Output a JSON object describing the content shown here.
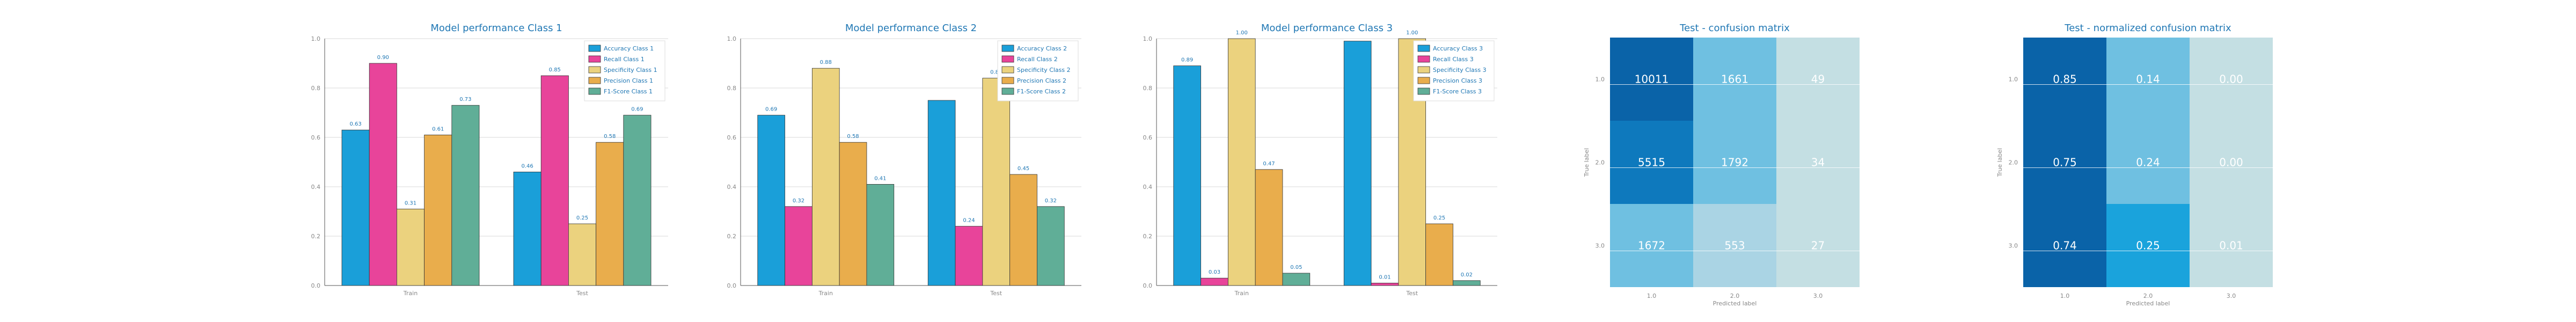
{
  "chart_data": [
    {
      "type": "bar",
      "title": "Model performance Class 1",
      "categories": [
        "Train",
        "Test"
      ],
      "ylim": [
        0,
        1.0
      ],
      "yticks": [
        "0.0",
        "0.2",
        "0.4",
        "0.6",
        "0.8",
        "1.0"
      ],
      "grid": true,
      "legend_position": "top-right",
      "series": [
        {
          "name": "Accuracy Class 1",
          "values": [
            0.63,
            0.46
          ],
          "labels": [
            "0.63",
            "0.46"
          ],
          "color": "#1a9fd9"
        },
        {
          "name": "Recall Class 1",
          "values": [
            0.9,
            0.85
          ],
          "labels": [
            "0.90",
            "0.85"
          ],
          "color": "#e8449a"
        },
        {
          "name": "Specificity Class 1",
          "values": [
            0.31,
            0.25
          ],
          "labels": [
            "0.31",
            "0.25"
          ],
          "color": "#ebd27e"
        },
        {
          "name": "Precision Class 1",
          "values": [
            0.61,
            0.58
          ],
          "labels": [
            "0.61",
            "0.58"
          ],
          "color": "#e9ad4c"
        },
        {
          "name": "F1-Score Class 1",
          "values": [
            0.73,
            0.69
          ],
          "labels": [
            "0.73",
            "0.69"
          ],
          "color": "#60ae97"
        }
      ]
    },
    {
      "type": "bar",
      "title": "Model performance Class 2",
      "categories": [
        "Train",
        "Test"
      ],
      "ylim": [
        0,
        1.0
      ],
      "yticks": [
        "0.0",
        "0.2",
        "0.4",
        "0.6",
        "0.8",
        "1.0"
      ],
      "grid": true,
      "legend_position": "top-right",
      "series": [
        {
          "name": "Accuracy Class 2",
          "values": [
            0.69,
            0.75
          ],
          "labels": [
            "0.69",
            ""
          ],
          "color": "#1a9fd9"
        },
        {
          "name": "Recall Class 2",
          "values": [
            0.32,
            0.24
          ],
          "labels": [
            "0.32",
            "0.24"
          ],
          "color": "#e8449a"
        },
        {
          "name": "Specificity Class 2",
          "values": [
            0.88,
            0.84
          ],
          "labels": [
            "0.88",
            "0.84"
          ],
          "color": "#ebd27e"
        },
        {
          "name": "Precision Class 2",
          "values": [
            0.58,
            0.45
          ],
          "labels": [
            "0.58",
            "0.45"
          ],
          "color": "#e9ad4c"
        },
        {
          "name": "F1-Score Class 2",
          "values": [
            0.41,
            0.32
          ],
          "labels": [
            "0.41",
            "0.32"
          ],
          "color": "#60ae97"
        }
      ]
    },
    {
      "type": "bar",
      "title": "Model performance Class 3",
      "categories": [
        "Train",
        "Test"
      ],
      "ylim": [
        0,
        1.0
      ],
      "yticks": [
        "0.0",
        "0.2",
        "0.4",
        "0.6",
        "0.8",
        "1.0"
      ],
      "grid": true,
      "legend_position": "top-right",
      "series": [
        {
          "name": "Accuracy Class 3",
          "values": [
            0.89,
            0.99
          ],
          "labels": [
            "0.89",
            ""
          ],
          "color": "#1a9fd9"
        },
        {
          "name": "Recall Class 3",
          "values": [
            0.03,
            0.01
          ],
          "labels": [
            "0.03",
            "0.01"
          ],
          "color": "#e8449a"
        },
        {
          "name": "Specificity Class 3",
          "values": [
            1.0,
            1.0
          ],
          "labels": [
            "1.00",
            "1.00"
          ],
          "color": "#ebd27e"
        },
        {
          "name": "Precision Class 3",
          "values": [
            0.47,
            0.25
          ],
          "labels": [
            "0.47",
            "0.25"
          ],
          "color": "#e9ad4c"
        },
        {
          "name": "F1-Score Class 3",
          "values": [
            0.05,
            0.02
          ],
          "labels": [
            "0.05",
            "0.02"
          ],
          "color": "#60ae97"
        }
      ]
    },
    {
      "type": "heatmap",
      "title": "Test - confusion matrix",
      "xlabel": "Predicted label",
      "ylabel": "True label",
      "x_ticks": [
        "1.0",
        "2.0",
        "3.0"
      ],
      "y_ticks": [
        "1.0",
        "2.0",
        "3.0"
      ],
      "values": [
        [
          10011,
          1661,
          49
        ],
        [
          5515,
          1792,
          34
        ],
        [
          1672,
          553,
          27
        ]
      ],
      "labels": [
        [
          "10011",
          "1661",
          "49"
        ],
        [
          "5515",
          "1792",
          "34"
        ],
        [
          "1672",
          "553",
          "27"
        ]
      ]
    },
    {
      "type": "heatmap",
      "title": "Test - normalized confusion matrix",
      "xlabel": "Predicted label",
      "ylabel": "True label",
      "x_ticks": [
        "1.0",
        "2.0",
        "3.0"
      ],
      "y_ticks": [
        "1.0",
        "2.0",
        "3.0"
      ],
      "values": [
        [
          0.85,
          0.14,
          0.0
        ],
        [
          0.75,
          0.24,
          0.0
        ],
        [
          0.74,
          0.25,
          0.01
        ]
      ],
      "labels": [
        [
          "0.85",
          "0.14",
          "0.00"
        ],
        [
          "0.75",
          "0.24",
          "0.00"
        ],
        [
          "0.74",
          "0.25",
          "0.01"
        ]
      ]
    }
  ],
  "colors": {
    "title": "#1f77b4",
    "axis_text": "#888888",
    "heatmap_text": "#ffffff",
    "heatmap_scale": [
      "#c4dfe3",
      "#aad4e4",
      "#6fc0e1",
      "#1aa3dc",
      "#0e79bd",
      "#0a63a8"
    ]
  }
}
